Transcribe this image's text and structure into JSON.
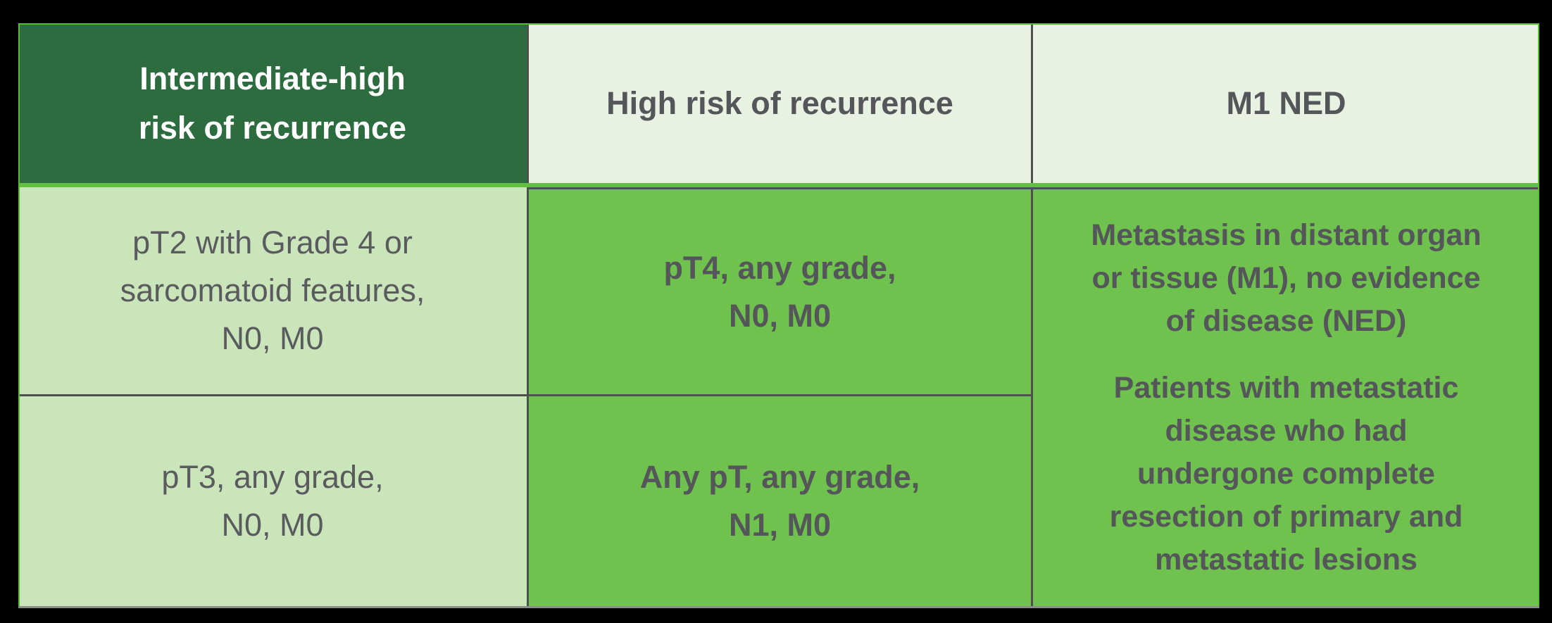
{
  "columns": [
    {
      "header": "Intermediate-high\nrisk of recurrence",
      "cells": [
        "pT2 with Grade 4 or\nsarcomatoid features,\nN0, M0",
        "pT3, any grade,\nN0, M0"
      ]
    },
    {
      "header": "High risk of recurrence",
      "cells": [
        "pT4, any grade,\nN0, M0",
        "Any pT, any grade,\nN1, M0"
      ]
    },
    {
      "header": "M1 NED",
      "cells": [
        "Metastasis in distant organ\nor tissue (M1), no evidence\nof disease (NED)",
        "Patients with metastatic\ndisease who had\nundergone complete\nresection of primary and\nmetastatic lesions"
      ]
    }
  ],
  "chart_data": {
    "type": "table",
    "columns": [
      "Intermediate-high risk of recurrence",
      "High risk of recurrence",
      "M1 NED"
    ],
    "rows": [
      [
        "pT2 with Grade 4 or sarcomatoid features, N0, M0",
        "pT4, any grade, N0, M0",
        "Metastasis in distant organ or tissue (M1), no evidence of disease (NED)"
      ],
      [
        "pT3, any grade, N0, M0",
        "Any pT, any grade, N1, M0",
        "Patients with metastatic disease who had undergone complete resection of primary and metastatic lesions"
      ]
    ],
    "layout_notes": "3-column table; third column body is one merged cell spanning both rows; header row uses dark green for column 1 and pale green for columns 2-3; body uses light green for column 1 and bright green for columns 2-3"
  },
  "colors": {
    "header_dark_bg": "#2C6C3F",
    "header_pale_bg": "#E8F1E2",
    "body_light_bg": "#CAE5BA",
    "body_green_bg": "#6FC24D",
    "band_green": "#64BE44",
    "border_gray": "#4D514C",
    "bottom_gray": "#8C8C8C",
    "outer_green": "#57BB35",
    "text_dark": "#54565A",
    "text_body": "#5A5B5F",
    "text_white": "#FFFFFF"
  }
}
